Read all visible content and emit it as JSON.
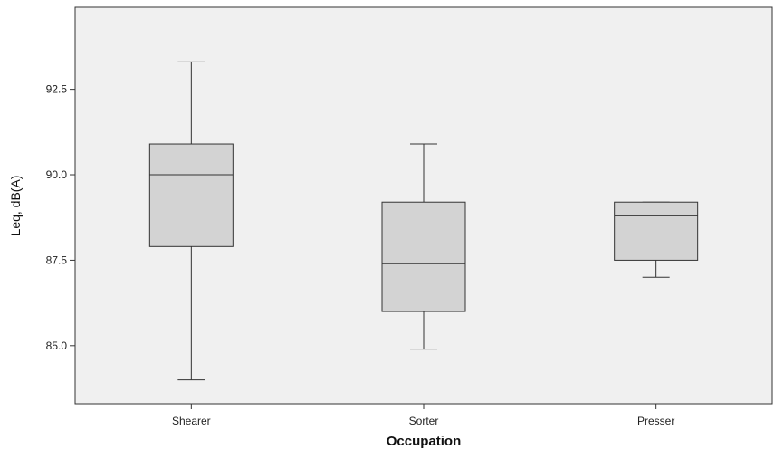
{
  "chart_data": {
    "type": "boxplot",
    "xlabel": "Occupation",
    "ylabel": "Leq, dB(A)",
    "ylim": [
      83.3,
      94.9
    ],
    "yticks": [
      85.0,
      87.5,
      90.0,
      92.5
    ],
    "ytick_labels": [
      "85.0",
      "87.5",
      "90.0",
      "92.5"
    ],
    "grid": false,
    "categories": [
      "Shearer",
      "Sorter",
      "Presser"
    ],
    "boxes": [
      {
        "category": "Shearer",
        "min": 84.0,
        "q1": 87.9,
        "median": 90.0,
        "q3": 90.9,
        "max": 93.3
      },
      {
        "category": "Sorter",
        "min": 84.9,
        "q1": 86.0,
        "median": 87.4,
        "q3": 89.2,
        "max": 90.9
      },
      {
        "category": "Presser",
        "min": 87.0,
        "q1": 87.5,
        "median": 88.8,
        "q3": 89.2,
        "max": 89.2
      }
    ],
    "colors": {
      "plot_background": "#f0f0f0",
      "box_fill": "#d3d3d3",
      "stroke": "#333333"
    }
  }
}
